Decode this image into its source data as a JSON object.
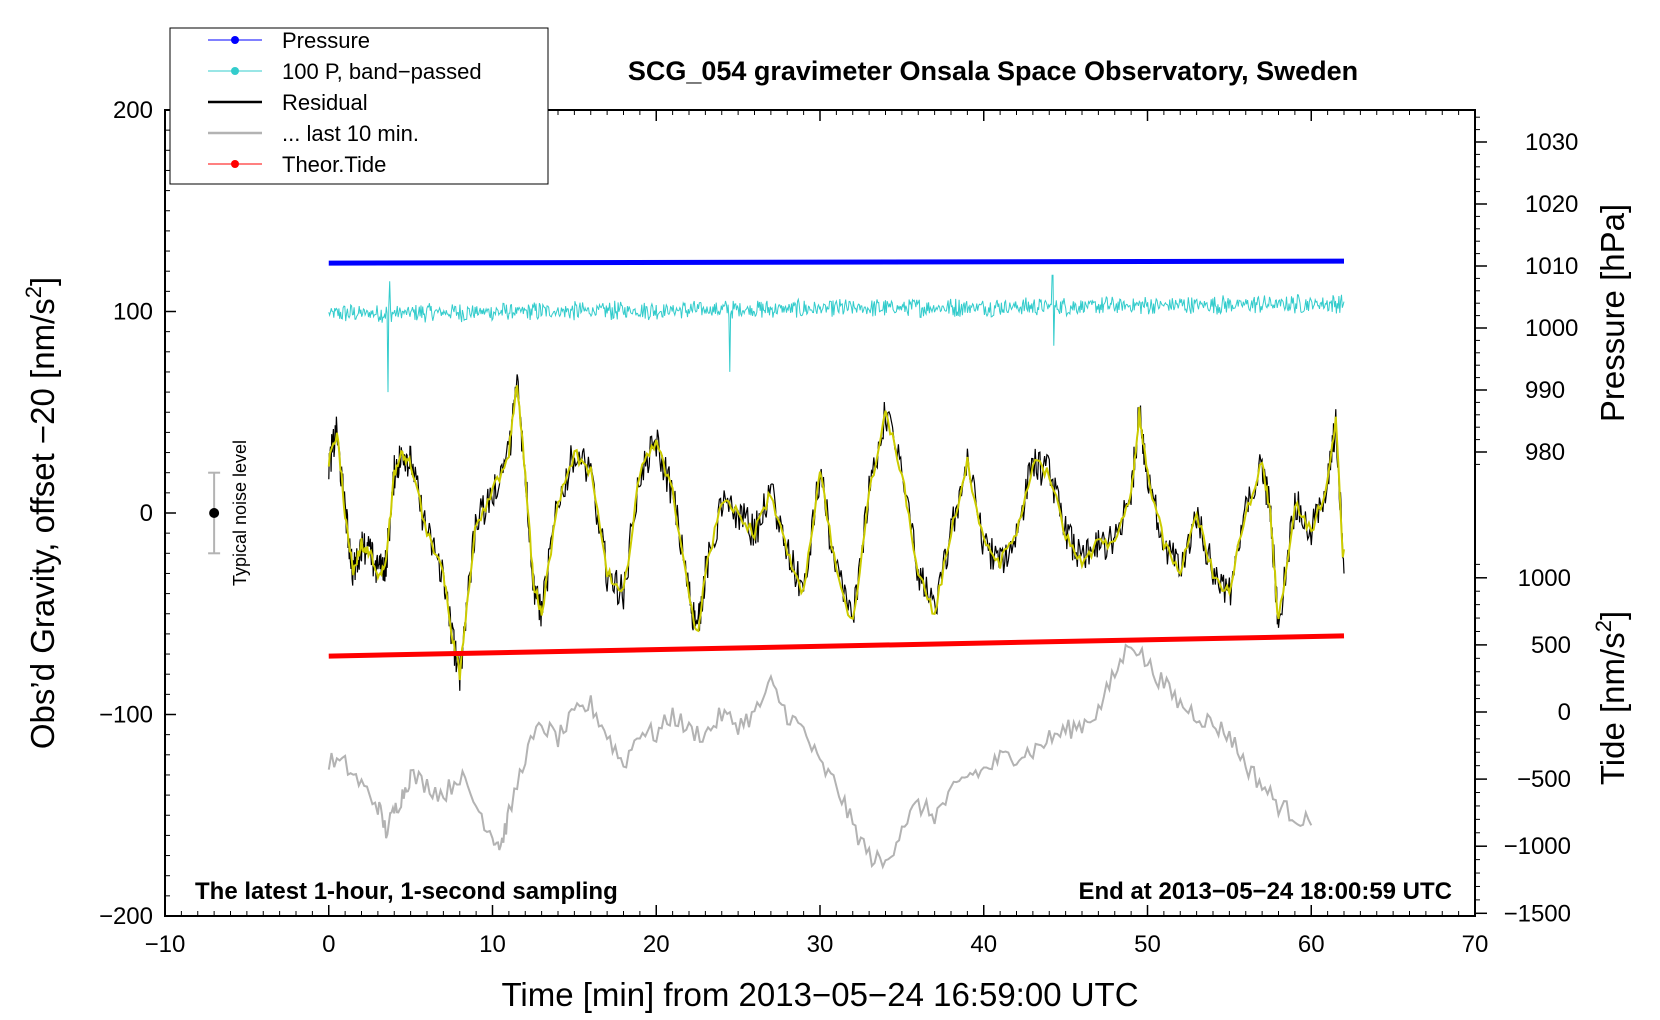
{
  "chart_data": {
    "type": "line",
    "title": "SCG_054 gravimeter Onsala Space Observatory, Sweden",
    "xlabel": "Time [min] from 2013−05−24 16:59:00 UTC",
    "ylabel_prefix": "Obs’d Gravity, offset −20 [nm/s",
    "ylabel_sup": "2",
    "ylabel_suffix": "]",
    "right_label_pressure": "Pressure [hPa]",
    "right_label_tide_prefix": "Tide [nm/s",
    "right_label_tide_sup": "2",
    "right_label_tide_suffix": "]",
    "xlim": [
      -10,
      70
    ],
    "ylim": [
      -200,
      200
    ],
    "xticks": [
      -10,
      0,
      10,
      20,
      30,
      40,
      50,
      60,
      70
    ],
    "xtick_labels": [
      "−10",
      "0",
      "10",
      "20",
      "30",
      "40",
      "50",
      "60",
      "70"
    ],
    "yticks": [
      -200,
      -100,
      0,
      100,
      200
    ],
    "ytick_labels": [
      "−200",
      "−100",
      "0",
      "100",
      "200"
    ],
    "pressure_axis": {
      "ticks": [
        980,
        990,
        1000,
        1010,
        1020,
        1030
      ],
      "tick_labels": [
        "980",
        "990",
        "1000",
        "1010",
        "1020",
        "1030"
      ]
    },
    "tide_axis": {
      "ticks": [
        -1500,
        -1000,
        -500,
        0,
        500,
        1000
      ],
      "tick_labels": [
        "−1500",
        "−1000",
        "−500",
        "0",
        "500",
        "1000"
      ]
    },
    "annotation_left": "The latest 1-hour, 1-second sampling",
    "annotation_right": "End at 2013−05−24 18:00:59 UTC",
    "noise_label": "Typical noise level",
    "noise_bar": {
      "x": -7,
      "center": 0,
      "half_range": 20
    },
    "legend": [
      {
        "label": "Pressure",
        "color": "#0000ff",
        "marker": true
      },
      {
        "label": "100 P, band−passed",
        "color": "#33cccc",
        "marker": true
      },
      {
        "label": "Residual",
        "color": "#000000",
        "marker": false
      },
      {
        "label": "... last 10 min.",
        "color": "#b3b3b3",
        "marker": false
      },
      {
        "label": "Theor.Tide",
        "color": "#ff0000",
        "marker": true
      }
    ],
    "series": [
      {
        "name": "Pressure",
        "color": "#0000ff",
        "x_range": [
          0,
          62
        ],
        "y_start": 124,
        "y_end": 125
      },
      {
        "name": "100 P, band-passed",
        "color": "#33cccc",
        "x_range": [
          0,
          62
        ],
        "y_center": 99,
        "y_center_end": 104,
        "amplitude": 5,
        "spikes": [
          {
            "x": 3.6,
            "y": 60
          },
          {
            "x": 3.7,
            "y": 115
          },
          {
            "x": 24.5,
            "y": 70
          },
          {
            "x": 44.2,
            "y": 118
          },
          {
            "x": 44.3,
            "y": 83
          }
        ]
      },
      {
        "name": "Theor.Tide",
        "color": "#ff0000",
        "x_range": [
          0,
          62
        ],
        "y_start": -71,
        "y_end": -61
      },
      {
        "name": "... last 10 min.",
        "color": "#b3b3b3",
        "x": [
          0,
          1,
          2,
          3,
          3.5,
          4,
          4.5,
          5,
          6,
          7,
          8,
          9,
          10,
          10.5,
          11,
          12,
          13,
          14,
          15,
          16,
          17,
          18,
          19,
          20,
          21,
          22,
          23,
          24,
          25,
          26,
          27,
          28,
          29,
          30,
          31,
          32,
          33,
          34,
          35,
          36,
          37,
          38,
          39,
          40,
          41,
          42,
          43,
          44,
          45,
          46,
          47,
          48,
          49,
          50,
          51,
          52,
          53,
          54,
          55,
          56,
          57,
          58,
          59,
          60
        ],
        "y": [
          -123,
          -125,
          -135,
          -145,
          -158,
          -148,
          -140,
          -130,
          -135,
          -140,
          -130,
          -145,
          -160,
          -165,
          -150,
          -120,
          -105,
          -112,
          -100,
          -95,
          -110,
          -125,
          -108,
          -110,
          -100,
          -108,
          -110,
          -100,
          -105,
          -100,
          -85,
          -100,
          -108,
          -125,
          -135,
          -155,
          -170,
          -175,
          -155,
          -145,
          -150,
          -140,
          -130,
          -128,
          -122,
          -120,
          -118,
          -112,
          -108,
          -105,
          -98,
          -80,
          -63,
          -75,
          -85,
          -95,
          -100,
          -105,
          -110,
          -125,
          -135,
          -145,
          -150,
          -155
        ]
      },
      {
        "name": "Residual",
        "color": "#000000",
        "x": [
          0,
          0.5,
          1,
          1.5,
          2,
          2.5,
          3,
          3.5,
          4,
          4.5,
          5,
          6,
          7,
          7.5,
          8,
          8.5,
          9,
          10,
          11,
          11.5,
          12,
          12.5,
          13,
          14,
          15,
          16,
          17,
          18,
          19,
          20,
          21,
          22,
          22.5,
          23,
          24,
          25,
          26,
          27,
          28,
          29,
          30,
          31,
          32,
          33,
          34,
          35,
          36,
          37,
          38,
          39,
          40,
          41,
          42,
          43,
          44,
          45,
          46,
          47,
          48,
          49,
          49.5,
          50,
          51,
          52,
          53,
          54,
          55,
          56,
          57,
          57.5,
          58,
          59,
          60,
          61,
          61.5,
          62
        ],
        "y": [
          25,
          40,
          0,
          -30,
          -15,
          -20,
          -30,
          -25,
          20,
          30,
          25,
          -10,
          -30,
          -60,
          -80,
          -40,
          -5,
          10,
          30,
          65,
          20,
          -35,
          -50,
          5,
          30,
          20,
          -30,
          -40,
          20,
          35,
          10,
          -40,
          -60,
          -30,
          5,
          0,
          -10,
          10,
          -20,
          -40,
          20,
          -30,
          -55,
          10,
          50,
          20,
          -30,
          -50,
          -10,
          25,
          -15,
          -25,
          -10,
          25,
          20,
          -10,
          -25,
          -15,
          -15,
          10,
          50,
          20,
          -15,
          -30,
          0,
          -30,
          -40,
          0,
          25,
          0,
          -55,
          5,
          -10,
          15,
          45,
          -30
        ]
      }
    ]
  }
}
